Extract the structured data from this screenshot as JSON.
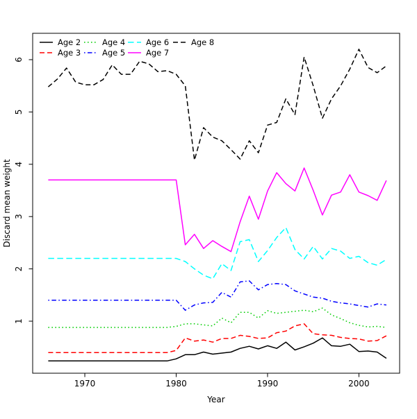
{
  "chart_data": {
    "type": "line",
    "title": "",
    "xlabel": "Year",
    "ylabel": "Discard mean weight",
    "x_ticks": [
      1970,
      1980,
      1990,
      2000
    ],
    "y_ticks": [
      1,
      2,
      3,
      4,
      5,
      6
    ],
    "xlim": [
      1964.3,
      2004.5
    ],
    "ylim": [
      0.0,
      6.5
    ],
    "grid": false,
    "legend_position": "top-left-inside",
    "x": [
      1966,
      1967,
      1968,
      1969,
      1970,
      1971,
      1972,
      1973,
      1974,
      1975,
      1976,
      1977,
      1978,
      1979,
      1980,
      1981,
      1982,
      1983,
      1984,
      1985,
      1986,
      1987,
      1988,
      1989,
      1990,
      1991,
      1992,
      1993,
      1994,
      1995,
      1996,
      1997,
      1998,
      1999,
      2000,
      2001,
      2002,
      2003
    ],
    "series": [
      {
        "name": "Age 2",
        "color": "#000000",
        "linestyle": "solid",
        "values": [
          0.24,
          0.24,
          0.24,
          0.24,
          0.24,
          0.24,
          0.24,
          0.24,
          0.24,
          0.24,
          0.24,
          0.24,
          0.24,
          0.24,
          0.28,
          0.36,
          0.36,
          0.41,
          0.37,
          0.39,
          0.41,
          0.48,
          0.52,
          0.47,
          0.53,
          0.48,
          0.6,
          0.45,
          0.51,
          0.58,
          0.68,
          0.53,
          0.52,
          0.56,
          0.42,
          0.43,
          0.41,
          0.29
        ]
      },
      {
        "name": "Age 3",
        "color": "#FF0000",
        "linestyle": "dashed",
        "values": [
          0.4,
          0.4,
          0.4,
          0.4,
          0.4,
          0.4,
          0.4,
          0.4,
          0.4,
          0.4,
          0.4,
          0.4,
          0.4,
          0.4,
          0.44,
          0.68,
          0.62,
          0.64,
          0.6,
          0.67,
          0.67,
          0.73,
          0.71,
          0.67,
          0.68,
          0.78,
          0.81,
          0.91,
          0.95,
          0.76,
          0.74,
          0.73,
          0.69,
          0.67,
          0.66,
          0.62,
          0.63,
          0.72
        ]
      },
      {
        "name": "Age 4",
        "color": "#00CD00",
        "linestyle": "dotted",
        "values": [
          0.88,
          0.88,
          0.88,
          0.88,
          0.88,
          0.88,
          0.88,
          0.88,
          0.88,
          0.88,
          0.88,
          0.88,
          0.88,
          0.88,
          0.9,
          0.95,
          0.95,
          0.93,
          0.91,
          1.06,
          0.97,
          1.17,
          1.17,
          1.06,
          1.2,
          1.15,
          1.17,
          1.19,
          1.21,
          1.18,
          1.25,
          1.12,
          1.05,
          0.97,
          0.92,
          0.89,
          0.9,
          0.88
        ]
      },
      {
        "name": "Age 5",
        "color": "#0000FF",
        "linestyle": "dashdot",
        "values": [
          1.4,
          1.4,
          1.4,
          1.4,
          1.4,
          1.4,
          1.4,
          1.4,
          1.4,
          1.4,
          1.4,
          1.4,
          1.4,
          1.4,
          1.4,
          1.21,
          1.31,
          1.35,
          1.36,
          1.55,
          1.46,
          1.75,
          1.77,
          1.6,
          1.7,
          1.72,
          1.7,
          1.58,
          1.52,
          1.46,
          1.44,
          1.38,
          1.35,
          1.33,
          1.3,
          1.27,
          1.33,
          1.31
        ]
      },
      {
        "name": "Age 6",
        "color": "#00FFFF",
        "linestyle": "longdash",
        "values": [
          2.2,
          2.2,
          2.2,
          2.2,
          2.2,
          2.2,
          2.2,
          2.2,
          2.2,
          2.2,
          2.2,
          2.2,
          2.2,
          2.2,
          2.2,
          2.14,
          2.0,
          1.88,
          1.81,
          2.1,
          1.97,
          2.52,
          2.56,
          2.14,
          2.35,
          2.6,
          2.79,
          2.37,
          2.19,
          2.43,
          2.19,
          2.39,
          2.34,
          2.2,
          2.24,
          2.12,
          2.07,
          2.18
        ]
      },
      {
        "name": "Age 7",
        "color": "#FF00FF",
        "linestyle": "solid",
        "values": [
          3.7,
          3.7,
          3.7,
          3.7,
          3.7,
          3.7,
          3.7,
          3.7,
          3.7,
          3.7,
          3.7,
          3.7,
          3.7,
          3.7,
          3.7,
          2.46,
          2.66,
          2.39,
          2.54,
          2.43,
          2.33,
          2.9,
          3.39,
          2.95,
          3.49,
          3.84,
          3.63,
          3.49,
          3.93,
          3.5,
          3.03,
          3.41,
          3.47,
          3.8,
          3.47,
          3.4,
          3.31,
          3.69
        ]
      },
      {
        "name": "Age 8",
        "color": "#000000",
        "linestyle": "dashed",
        "values": [
          5.48,
          5.63,
          5.84,
          5.57,
          5.52,
          5.52,
          5.62,
          5.9,
          5.72,
          5.72,
          5.97,
          5.92,
          5.77,
          5.79,
          5.72,
          5.5,
          4.08,
          4.7,
          4.52,
          4.45,
          4.28,
          4.1,
          4.45,
          4.22,
          4.75,
          4.8,
          5.25,
          4.95,
          6.05,
          5.5,
          4.88,
          5.25,
          5.5,
          5.82,
          6.2,
          5.85,
          5.75,
          5.88
        ]
      }
    ]
  }
}
